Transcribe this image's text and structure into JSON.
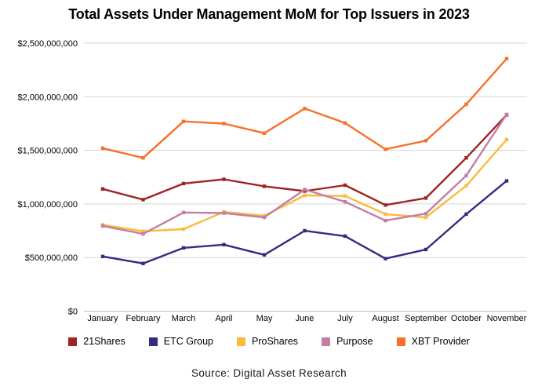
{
  "title": "Total Assets Under Management MoM for Top Issuers in 2023",
  "footer": "Source: Digital Asset Research",
  "chart_data": {
    "type": "line",
    "categories": [
      "January",
      "February",
      "March",
      "April",
      "May",
      "June",
      "July",
      "August",
      "September",
      "October",
      "November"
    ],
    "series": [
      {
        "name": "21Shares",
        "color": "#9E2423",
        "values": [
          1140000000,
          1040000000,
          1190000000,
          1230000000,
          1165000000,
          1120000000,
          1175000000,
          990000000,
          1055000000,
          1430000000,
          1830000000
        ]
      },
      {
        "name": "ETC Group",
        "color": "#332C80",
        "values": [
          510000000,
          445000000,
          590000000,
          620000000,
          525000000,
          750000000,
          700000000,
          490000000,
          575000000,
          905000000,
          1215000000
        ]
      },
      {
        "name": "ProShares",
        "color": "#FCBA3C",
        "values": [
          805000000,
          745000000,
          765000000,
          925000000,
          890000000,
          1080000000,
          1075000000,
          905000000,
          875000000,
          1170000000,
          1600000000
        ]
      },
      {
        "name": "Purpose",
        "color": "#C37EA5",
        "values": [
          795000000,
          720000000,
          920000000,
          915000000,
          875000000,
          1135000000,
          1020000000,
          845000000,
          910000000,
          1265000000,
          1835000000
        ]
      },
      {
        "name": "XBT Provider",
        "color": "#F8702A",
        "values": [
          1520000000,
          1430000000,
          1770000000,
          1750000000,
          1660000000,
          1890000000,
          1755000000,
          1510000000,
          1590000000,
          1930000000,
          2355000000
        ]
      }
    ],
    "y_ticks": [
      {
        "value": 0,
        "label": "$0"
      },
      {
        "value": 500000000,
        "label": "$500,000,000"
      },
      {
        "value": 1000000000,
        "label": "$1,000,000,000"
      },
      {
        "value": 1500000000,
        "label": "$1,500,000,000"
      },
      {
        "value": 2000000000,
        "label": "$2,000,000,000"
      },
      {
        "value": 2500000000,
        "label": "$2,500,000,000"
      }
    ],
    "ylim": [
      0,
      2500000000
    ],
    "xlabel": "",
    "ylabel": "",
    "grid": true,
    "legend_position": "bottom",
    "grid_color": "#d4d4d4",
    "zero_line_color": "#b9b9b9"
  }
}
